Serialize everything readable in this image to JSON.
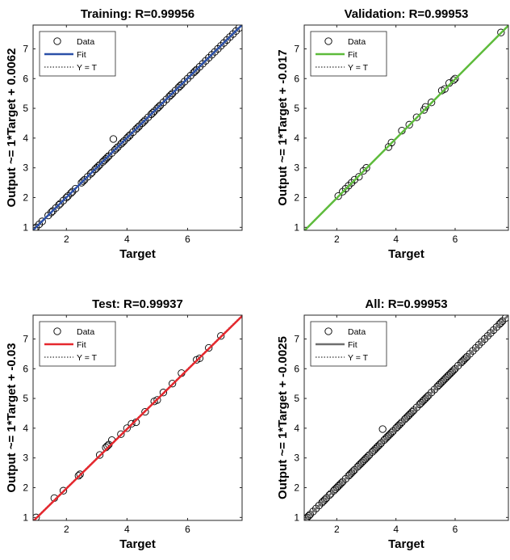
{
  "chart_data": [
    {
      "type": "scatter",
      "title": "Training: R=0.99956",
      "xlabel": "Target",
      "ylabel": "Output ~= 1*Target + 0.0062",
      "xlim": [
        0.9,
        7.8
      ],
      "ylim": [
        0.9,
        7.8
      ],
      "xticks": [
        2,
        4,
        6
      ],
      "yticks": [
        1,
        2,
        3,
        4,
        5,
        6,
        7
      ],
      "fit_color": "#2b50a8",
      "fit": {
        "slope": 1,
        "intercept": 0.0062
      },
      "legend": {
        "position": "top-left",
        "entries": [
          "Data",
          "Fit",
          "Y = T"
        ]
      },
      "series": [
        {
          "name": "Data",
          "x": [
            0.95,
            1.0,
            1.1,
            1.2,
            1.4,
            1.5,
            1.55,
            1.65,
            1.75,
            1.8,
            1.9,
            2.0,
            2.05,
            2.15,
            2.2,
            2.3,
            2.5,
            2.55,
            2.6,
            2.7,
            2.8,
            2.85,
            2.95,
            3.0,
            3.05,
            3.1,
            3.2,
            3.25,
            3.3,
            3.35,
            3.4,
            3.5,
            3.55,
            3.6,
            3.65,
            3.7,
            3.8,
            3.85,
            3.9,
            4.0,
            4.05,
            4.1,
            4.2,
            4.3,
            4.35,
            4.4,
            4.5,
            4.55,
            4.6,
            4.7,
            4.8,
            4.85,
            4.9,
            5.0,
            5.05,
            5.1,
            5.2,
            5.3,
            5.4,
            5.45,
            5.5,
            5.6,
            5.7,
            5.75,
            5.8,
            5.9,
            6.0,
            6.1,
            6.2,
            6.25,
            6.3,
            6.4,
            6.5,
            6.6,
            6.7,
            6.8,
            6.9,
            7.0,
            7.1,
            7.2,
            7.3,
            7.4,
            7.5,
            7.6,
            7.7
          ],
          "y": [
            0.95,
            1.0,
            1.1,
            1.2,
            1.4,
            1.5,
            1.55,
            1.65,
            1.75,
            1.8,
            1.9,
            2.0,
            2.05,
            2.15,
            2.2,
            2.3,
            2.5,
            2.55,
            2.6,
            2.7,
            2.8,
            2.85,
            2.95,
            3.0,
            3.05,
            3.1,
            3.2,
            3.25,
            3.3,
            3.35,
            3.4,
            3.5,
            3.97,
            3.6,
            3.65,
            3.7,
            3.8,
            3.85,
            3.9,
            4.0,
            4.05,
            4.1,
            4.2,
            4.3,
            4.35,
            4.4,
            4.5,
            4.55,
            4.6,
            4.7,
            4.8,
            4.85,
            4.9,
            5.0,
            5.05,
            5.1,
            5.2,
            5.3,
            5.4,
            5.45,
            5.5,
            5.6,
            5.7,
            5.75,
            5.8,
            5.9,
            6.0,
            6.1,
            6.2,
            6.25,
            6.3,
            6.4,
            6.5,
            6.6,
            6.7,
            6.8,
            6.9,
            7.0,
            7.1,
            7.2,
            7.3,
            7.4,
            7.5,
            7.6,
            7.7
          ]
        }
      ]
    },
    {
      "type": "scatter",
      "title": "Validation: R=0.99953",
      "xlabel": "Target",
      "ylabel": "Output ~= 1*Target + -0.017",
      "xlim": [
        0.9,
        7.8
      ],
      "ylim": [
        0.9,
        7.8
      ],
      "xticks": [
        2,
        4,
        6
      ],
      "yticks": [
        1,
        2,
        3,
        4,
        5,
        6,
        7
      ],
      "fit_color": "#5dbb3b",
      "fit": {
        "slope": 1,
        "intercept": -0.017
      },
      "legend": {
        "position": "top-left",
        "entries": [
          "Data",
          "Fit",
          "Y = T"
        ]
      },
      "series": [
        {
          "name": "Data",
          "x": [
            2.05,
            2.2,
            2.3,
            2.4,
            2.5,
            2.6,
            2.75,
            2.9,
            3.0,
            3.75,
            3.85,
            4.2,
            4.45,
            4.7,
            4.95,
            5.0,
            5.2,
            5.55,
            5.65,
            5.8,
            5.95,
            6.0,
            7.55
          ],
          "y": [
            2.05,
            2.2,
            2.3,
            2.4,
            2.5,
            2.6,
            2.7,
            2.9,
            3.0,
            3.7,
            3.85,
            4.25,
            4.45,
            4.7,
            4.95,
            5.05,
            5.2,
            5.6,
            5.65,
            5.85,
            5.95,
            6.0,
            7.55
          ]
        }
      ]
    },
    {
      "type": "scatter",
      "title": "Test: R=0.99937",
      "xlabel": "Target",
      "ylabel": "Output ~= 1*Target + -0.03",
      "xlim": [
        0.9,
        7.8
      ],
      "ylim": [
        0.9,
        7.8
      ],
      "xticks": [
        2,
        4,
        6
      ],
      "yticks": [
        1,
        2,
        3,
        4,
        5,
        6,
        7
      ],
      "fit_color": "#e5282e",
      "fit": {
        "slope": 1,
        "intercept": -0.03
      },
      "legend": {
        "position": "top-left",
        "entries": [
          "Data",
          "Fit",
          "Y = T"
        ]
      },
      "series": [
        {
          "name": "Data",
          "x": [
            1.0,
            1.6,
            1.9,
            2.4,
            2.45,
            3.1,
            3.3,
            3.35,
            3.4,
            3.5,
            3.8,
            4.0,
            4.15,
            4.3,
            4.6,
            4.9,
            5.0,
            5.2,
            5.5,
            5.8,
            6.3,
            6.4,
            6.7,
            7.1
          ],
          "y": [
            1.0,
            1.65,
            1.9,
            2.4,
            2.45,
            3.1,
            3.35,
            3.4,
            3.45,
            3.6,
            3.8,
            4.0,
            4.15,
            4.2,
            4.55,
            4.9,
            4.95,
            5.2,
            5.5,
            5.85,
            6.3,
            6.35,
            6.7,
            7.1
          ]
        }
      ]
    },
    {
      "type": "scatter",
      "title": "All: R=0.99953",
      "xlabel": "Target",
      "ylabel": "Output ~= 1*Target + -0.0025",
      "xlim": [
        0.9,
        7.8
      ],
      "ylim": [
        0.9,
        7.8
      ],
      "xticks": [
        2,
        4,
        6
      ],
      "yticks": [
        1,
        2,
        3,
        4,
        5,
        6,
        7
      ],
      "fit_color": "#6e6e6e",
      "fit": {
        "slope": 1,
        "intercept": -0.0025
      },
      "legend": {
        "position": "top-left",
        "entries": [
          "Data",
          "Fit",
          "Y = T"
        ]
      },
      "series": [
        {
          "name": "Data",
          "x": [
            0.95,
            1.0,
            1.05,
            1.1,
            1.2,
            1.3,
            1.4,
            1.5,
            1.55,
            1.6,
            1.65,
            1.75,
            1.8,
            1.9,
            1.95,
            2.0,
            2.05,
            2.1,
            2.15,
            2.2,
            2.3,
            2.4,
            2.45,
            2.5,
            2.55,
            2.6,
            2.7,
            2.75,
            2.8,
            2.85,
            2.9,
            2.95,
            3.0,
            3.05,
            3.1,
            3.2,
            3.25,
            3.3,
            3.35,
            3.4,
            3.45,
            3.5,
            3.55,
            3.6,
            3.65,
            3.7,
            3.75,
            3.8,
            3.85,
            3.9,
            4.0,
            4.05,
            4.1,
            4.15,
            4.2,
            4.3,
            4.35,
            4.4,
            4.45,
            4.5,
            4.55,
            4.6,
            4.7,
            4.8,
            4.85,
            4.9,
            4.95,
            5.0,
            5.05,
            5.1,
            5.2,
            5.3,
            5.4,
            5.45,
            5.5,
            5.55,
            5.6,
            5.65,
            5.7,
            5.75,
            5.8,
            5.85,
            5.9,
            5.95,
            6.0,
            6.1,
            6.2,
            6.25,
            6.3,
            6.35,
            6.4,
            6.5,
            6.6,
            6.7,
            6.8,
            6.9,
            7.0,
            7.1,
            7.2,
            7.3,
            7.4,
            7.5,
            7.55,
            7.6,
            7.7
          ],
          "y": [
            0.95,
            1.0,
            1.05,
            1.1,
            1.2,
            1.3,
            1.4,
            1.5,
            1.55,
            1.6,
            1.65,
            1.75,
            1.8,
            1.9,
            1.95,
            2.0,
            2.05,
            2.1,
            2.15,
            2.2,
            2.3,
            2.4,
            2.45,
            2.5,
            2.55,
            2.6,
            2.7,
            2.75,
            2.8,
            2.85,
            2.9,
            2.95,
            3.0,
            3.05,
            3.1,
            3.2,
            3.25,
            3.3,
            3.35,
            3.4,
            3.45,
            3.5,
            3.97,
            3.6,
            3.65,
            3.7,
            3.75,
            3.8,
            3.85,
            3.9,
            4.0,
            4.05,
            4.1,
            4.15,
            4.2,
            4.3,
            4.35,
            4.4,
            4.45,
            4.5,
            4.55,
            4.6,
            4.7,
            4.8,
            4.85,
            4.9,
            4.95,
            5.0,
            5.05,
            5.1,
            5.2,
            5.3,
            5.4,
            5.45,
            5.5,
            5.55,
            5.6,
            5.65,
            5.7,
            5.75,
            5.8,
            5.85,
            5.9,
            5.95,
            6.0,
            6.1,
            6.2,
            6.25,
            6.3,
            6.35,
            6.4,
            6.5,
            6.6,
            6.7,
            6.8,
            6.9,
            7.0,
            7.1,
            7.2,
            7.3,
            7.4,
            7.5,
            7.55,
            7.6,
            7.7
          ]
        }
      ]
    }
  ]
}
